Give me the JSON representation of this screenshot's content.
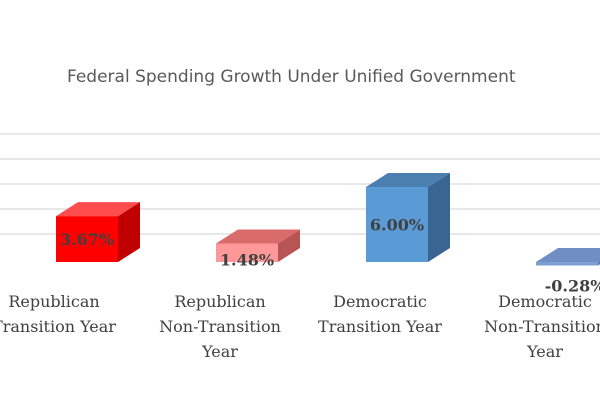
{
  "chart_data": {
    "type": "bar",
    "title": "Federal Spending Growth Under Unified Government",
    "categories": [
      [
        "Republican",
        "Transition Year"
      ],
      [
        "Republican",
        "Non-Transition",
        "Year"
      ],
      [
        "Democratic",
        "Transition Year"
      ],
      [
        "Democratic",
        "Non-Transition",
        "Year"
      ]
    ],
    "values": [
      3.67,
      1.48,
      6.0,
      -0.28
    ],
    "value_labels": [
      "3.67%",
      "1.48%",
      "6.00%",
      "-0.28%"
    ],
    "ylim": [
      -1,
      8
    ],
    "grid": true,
    "legend": "none",
    "bar_colors": [
      {
        "front": "#ff0000",
        "top": "#ff4d4d",
        "side": "#c00000"
      },
      {
        "front": "#ff9999",
        "top": "#d96b6b",
        "side": "#b85454"
      },
      {
        "front": "#5b9bd5",
        "top": "#4a7fb0",
        "side": "#3a6592"
      },
      {
        "front": "#7d9fd0",
        "top": "#6f8fc2",
        "side": "#5e7fb3"
      }
    ],
    "grid_color": "#d9d9d9",
    "title_color": "#595959",
    "text_color": "#404040"
  }
}
